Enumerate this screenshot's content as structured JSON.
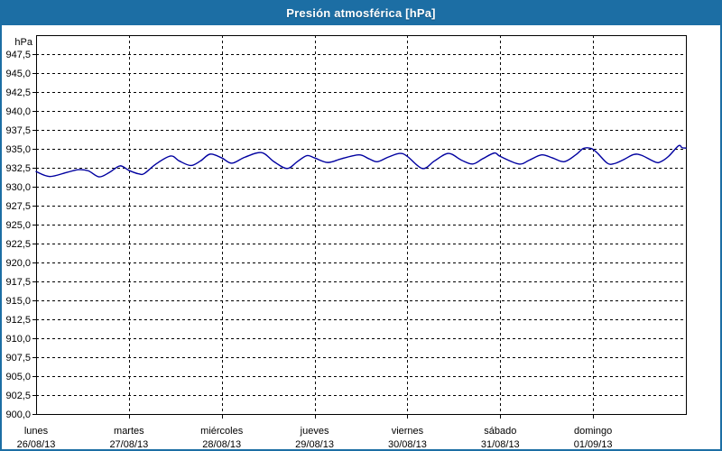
{
  "header": {
    "title": "Presión atmosférica [hPa]"
  },
  "colors": {
    "title_bar_bg": "#1C6EA4",
    "window_border": "#1C6EA4",
    "title_text": "#FFFFFF",
    "grid": "#000000",
    "axis_text": "#000000",
    "line": "#0000A0"
  },
  "chart_data": {
    "type": "line",
    "title": "Presión atmosférica [hPa]",
    "unit_label": "hPa",
    "ylabel": "hPa",
    "xlabel": "",
    "ylim": [
      900,
      950
    ],
    "y_tick_step": 2.5,
    "y_tick_labels": [
      "947,5",
      "945,0",
      "942,5",
      "940,0",
      "937,5",
      "935,0",
      "932,5",
      "930,0",
      "927,5",
      "925,0",
      "922,5",
      "920,0",
      "917,5",
      "915,0",
      "912,5",
      "910,0",
      "907,5",
      "905,0",
      "902,5",
      "900,0"
    ],
    "x_days": [
      {
        "weekday": "lunes",
        "date": "26/08/13"
      },
      {
        "weekday": "martes",
        "date": "27/08/13"
      },
      {
        "weekday": "miércoles",
        "date": "28/08/13"
      },
      {
        "weekday": "jueves",
        "date": "29/08/13"
      },
      {
        "weekday": "viernes",
        "date": "30/08/13"
      },
      {
        "weekday": "sábado",
        "date": "31/08/13"
      },
      {
        "weekday": "domingo",
        "date": "01/09/13"
      }
    ],
    "x_hours_total": 168,
    "grid": "dashed",
    "legend": "none",
    "series": [
      {
        "name": "Presión atmosférica [hPa]",
        "points_t_hours_vs_hpa": [
          [
            0,
            932.0
          ],
          [
            3.5,
            931.35
          ],
          [
            8,
            931.9
          ],
          [
            11,
            932.25
          ],
          [
            13.5,
            932.1
          ],
          [
            16.3,
            931.3
          ],
          [
            19,
            931.9
          ],
          [
            21.7,
            932.75
          ],
          [
            24,
            932.15
          ],
          [
            26.5,
            931.7
          ],
          [
            28,
            931.75
          ],
          [
            31,
            933.0
          ],
          [
            34.8,
            934.05
          ],
          [
            37,
            933.4
          ],
          [
            40,
            932.8
          ],
          [
            42.5,
            933.4
          ],
          [
            45,
            934.3
          ],
          [
            48,
            933.8
          ],
          [
            50.6,
            933.1
          ],
          [
            54,
            933.9
          ],
          [
            58.3,
            934.5
          ],
          [
            61.5,
            933.3
          ],
          [
            64.9,
            932.4
          ],
          [
            67.5,
            933.3
          ],
          [
            70,
            934.1
          ],
          [
            72,
            933.8
          ],
          [
            75.4,
            933.2
          ],
          [
            79,
            933.7
          ],
          [
            83.5,
            934.2
          ],
          [
            86,
            933.7
          ],
          [
            88.2,
            933.3
          ],
          [
            91,
            933.9
          ],
          [
            94,
            934.4
          ],
          [
            96,
            934.0
          ],
          [
            99.9,
            932.4
          ],
          [
            103,
            933.4
          ],
          [
            106.6,
            934.4
          ],
          [
            110,
            933.5
          ],
          [
            112.9,
            933.0
          ],
          [
            115.5,
            933.7
          ],
          [
            118.5,
            934.45
          ],
          [
            120,
            934.0
          ],
          [
            124.8,
            933.0
          ],
          [
            127.5,
            933.5
          ],
          [
            130.7,
            934.2
          ],
          [
            133.5,
            933.8
          ],
          [
            136.5,
            933.3
          ],
          [
            139.5,
            934.2
          ],
          [
            141.5,
            935.05
          ],
          [
            143.5,
            935.05
          ],
          [
            145,
            934.5
          ],
          [
            147.7,
            933.1
          ],
          [
            149.5,
            933.05
          ],
          [
            152,
            933.6
          ],
          [
            154.5,
            934.25
          ],
          [
            156.5,
            934.15
          ],
          [
            160.1,
            933.25
          ],
          [
            161.5,
            933.3
          ],
          [
            163.5,
            934.0
          ],
          [
            166.1,
            935.4
          ],
          [
            167,
            935.15
          ],
          [
            168,
            935.1
          ]
        ]
      }
    ]
  }
}
